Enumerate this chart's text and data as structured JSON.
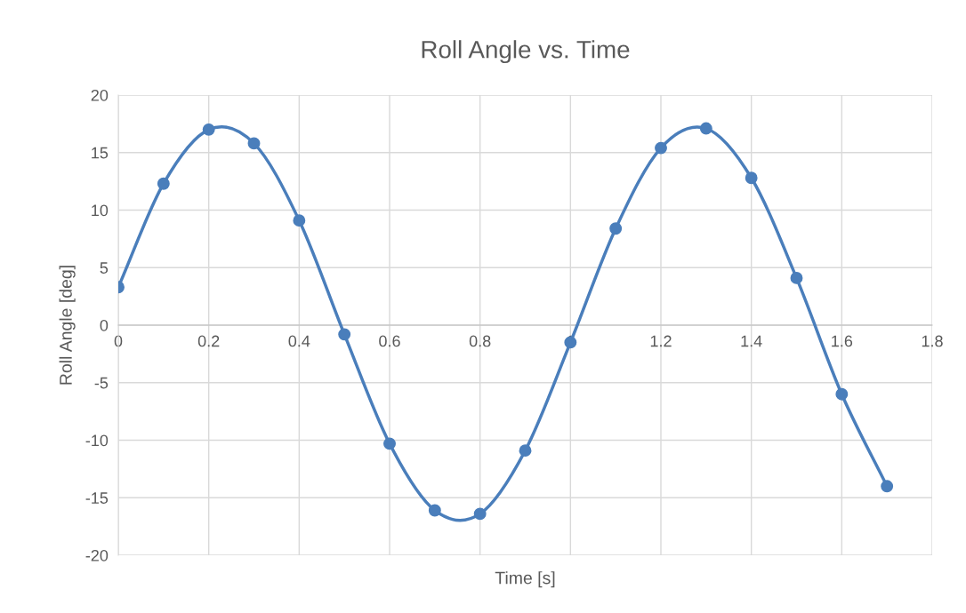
{
  "chart_data": {
    "type": "line",
    "title": "Roll Angle vs. Time",
    "xlabel": "Time [s]",
    "ylabel": "Roll Angle [deg]",
    "x": [
      0,
      0.1,
      0.2,
      0.3,
      0.4,
      0.5,
      0.6,
      0.7,
      0.8,
      0.9,
      1.0,
      1.1,
      1.2,
      1.3,
      1.4,
      1.5,
      1.6,
      1.7
    ],
    "series": [
      {
        "color": "#4a7ebb",
        "values": [
          3.3,
          12.3,
          17.0,
          15.8,
          9.1,
          -0.8,
          -10.3,
          -16.1,
          -16.4,
          -10.9,
          -1.5,
          8.4,
          15.4,
          17.1,
          12.8,
          4.1,
          -6.0,
          -14.0
        ]
      }
    ],
    "xlim": [
      0,
      1.8
    ],
    "xticks": [
      0,
      0.2,
      0.4,
      0.6,
      0.8,
      1,
      1.2,
      1.4,
      1.6,
      1.8
    ],
    "ylim": [
      -20,
      20
    ],
    "yticks": [
      -20,
      -15,
      -10,
      -5,
      0,
      5,
      10,
      15,
      20
    ],
    "grid": true,
    "marker": "circle",
    "line_style": "solid"
  }
}
